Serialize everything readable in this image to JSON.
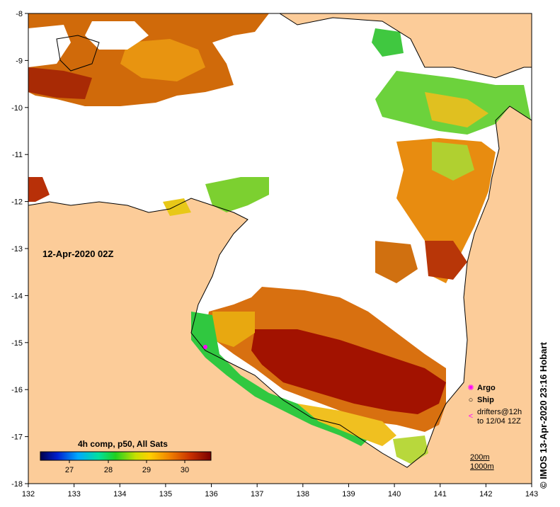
{
  "map": {
    "date_label": "12-Apr-2020 02Z",
    "credit": "© IMOS 13-Apr-2020 23:16 Hobart",
    "lon_ticks": [
      "132",
      "133",
      "134",
      "135",
      "136",
      "137",
      "138",
      "139",
      "140",
      "141",
      "142",
      "143"
    ],
    "lat_ticks": [
      "-8",
      "-9",
      "-10",
      "-11",
      "-12",
      "-13",
      "-14",
      "-15",
      "-16",
      "-17",
      "-18"
    ],
    "colorbar": {
      "title": "4h comp, p50, All Sats",
      "ticks": [
        "27",
        "28",
        "29",
        "30"
      ]
    },
    "legend": {
      "argo": "Argo",
      "ship": "Ship",
      "drifters_1": "drifters@12h",
      "drifters_2": "to 12/04 12Z"
    },
    "depth": {
      "line1": "200m",
      "line2": "1000m"
    },
    "colors": {
      "land": "#fccc99",
      "cloud": "#ffffff",
      "hot": "#a01000",
      "warm": "#d86a0a",
      "mid": "#f4b000",
      "cool": "#3cc83c",
      "argo": "#ff00ff"
    }
  }
}
